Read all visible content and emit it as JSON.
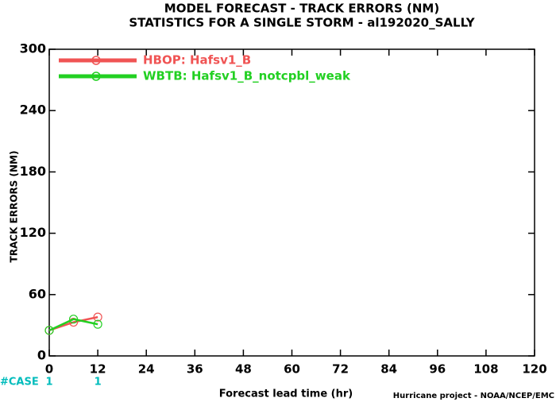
{
  "chart_data": {
    "type": "line",
    "title": "MODEL FORECAST - TRACK ERRORS (NM)",
    "subtitle": "STATISTICS FOR A SINGLE STORM - al192020_SALLY",
    "x_label": "Forecast lead time (hr)",
    "y_label": "TRACK ERRORS (NM)",
    "footer": "Hurricane project - NOAA/NCEP/EMC",
    "x": [
      0,
      6,
      12
    ],
    "series": [
      {
        "name": "HBOP: Hafsv1_B",
        "color": "#f05454",
        "values": [
          25,
          33,
          38
        ]
      },
      {
        "name": "WBTB: Hafsv1_B_notcpbl_weak",
        "color": "#22d022",
        "values": [
          25,
          36,
          31
        ]
      }
    ],
    "xlim": [
      0,
      120
    ],
    "xticks": [
      0,
      12,
      24,
      36,
      48,
      60,
      72,
      84,
      96,
      108,
      120
    ],
    "ylim": [
      0,
      300
    ],
    "yticks": [
      0,
      60,
      120,
      180,
      240,
      300
    ],
    "legend": "upper left",
    "cases": {
      "label": "#CASE",
      "color": "#00bcbc",
      "x": [
        0,
        12
      ],
      "values": [
        1,
        1
      ]
    }
  }
}
